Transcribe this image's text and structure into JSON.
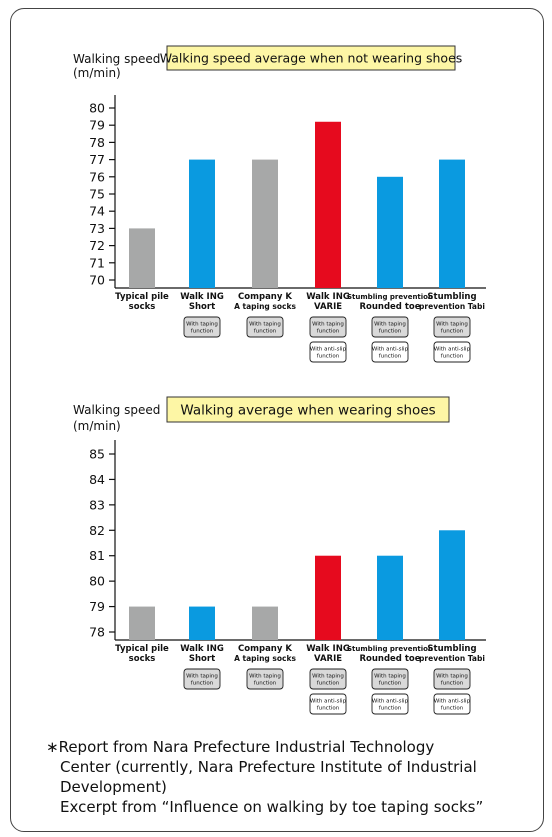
{
  "colors": {
    "gray": "#a7a8a8",
    "blue": "#0a9ae0",
    "red": "#e60a1e",
    "title_box": "#fdf6a5",
    "function_box": "#d9d9d9"
  },
  "function_labels": {
    "taping": [
      "With taping",
      "function"
    ],
    "antislip": [
      "With anti-slip",
      "function"
    ]
  },
  "chart_data": [
    {
      "type": "bar",
      "title": "Walking speed average when not wearing shoes",
      "ylabel": [
        "Walking speed",
        "(m/min)"
      ],
      "ylim": [
        70,
        80
      ],
      "yticks": [
        70,
        71,
        72,
        73,
        74,
        75,
        76,
        77,
        78,
        79,
        80
      ],
      "categories": [
        [
          "Typical pile",
          "socks"
        ],
        [
          "Walk ING",
          "Short"
        ],
        [
          "Company K",
          "A taping socks"
        ],
        [
          "Walk ING",
          "VARIE"
        ],
        [
          "Stumbling prevention",
          "Rounded toe"
        ],
        [
          "Stumbling",
          "prevention Tabi"
        ]
      ],
      "values": [
        73,
        77,
        77,
        79.2,
        76,
        77
      ],
      "bar_colors": [
        "gray",
        "blue",
        "gray",
        "red",
        "blue",
        "blue"
      ],
      "functions": [
        [],
        [
          "taping"
        ],
        [
          "taping"
        ],
        [
          "taping",
          "antislip"
        ],
        [
          "taping",
          "antislip"
        ],
        [
          "taping",
          "antislip"
        ]
      ]
    },
    {
      "type": "bar",
      "title": "Walking average when wearing shoes",
      "ylabel": [
        "Walking speed",
        "(m/min)"
      ],
      "ylim": [
        78,
        85
      ],
      "yticks": [
        78,
        79,
        80,
        81,
        82,
        83,
        84,
        85
      ],
      "categories": [
        [
          "Typical pile",
          "socks"
        ],
        [
          "Walk ING",
          "Short"
        ],
        [
          "Company K",
          "A taping socks"
        ],
        [
          "Walk ING",
          "VARIE"
        ],
        [
          "Stumbling prevention",
          "Rounded toe"
        ],
        [
          "Stumbling",
          "prevention Tabi"
        ]
      ],
      "values": [
        79,
        79,
        79,
        81,
        81,
        82
      ],
      "bar_colors": [
        "gray",
        "blue",
        "gray",
        "red",
        "blue",
        "blue"
      ],
      "functions": [
        [],
        [
          "taping"
        ],
        [
          "taping"
        ],
        [
          "taping",
          "antislip"
        ],
        [
          "taping",
          "antislip"
        ],
        [
          "taping",
          "antislip"
        ]
      ]
    }
  ],
  "footnote": [
    "∗Report from Nara Prefecture Industrial Technology",
    "Center (currently, Nara Prefecture Institute of Industrial",
    "Development)",
    "Excerpt from “Influence on walking by toe taping socks”"
  ]
}
